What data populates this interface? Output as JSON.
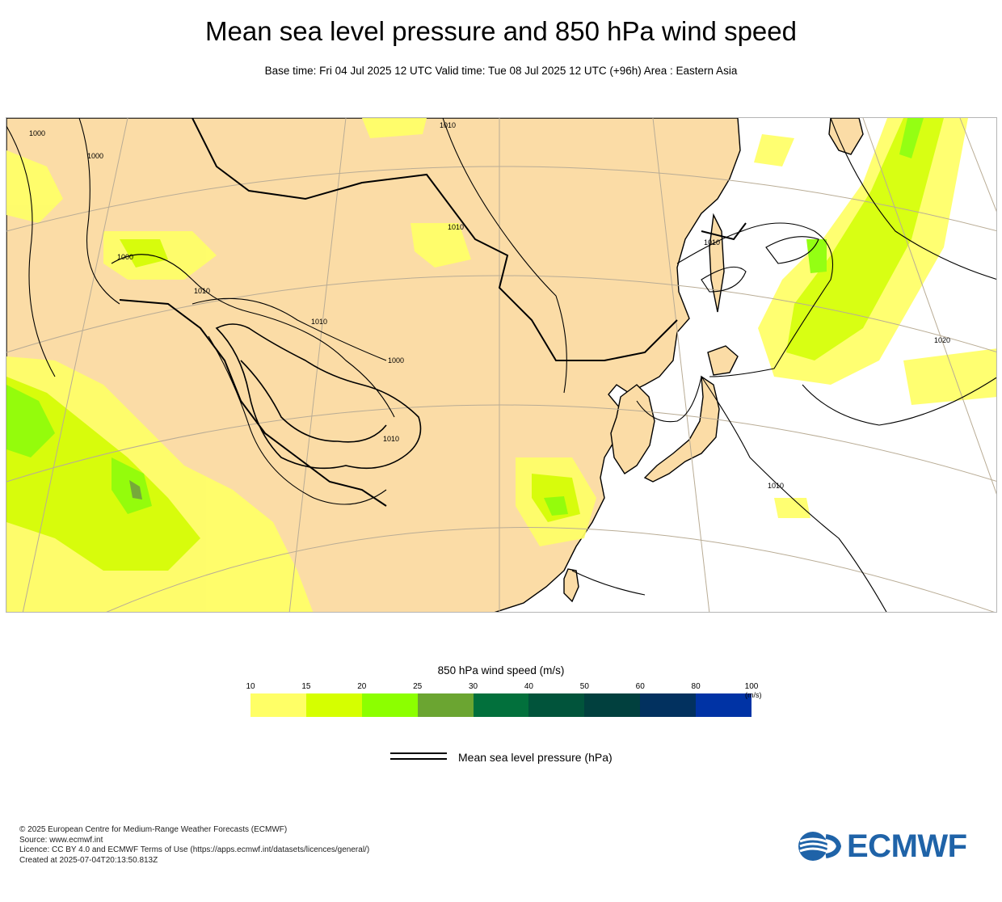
{
  "header": {
    "title": "Mean sea level pressure and 850 hPa wind speed",
    "subtitle": "Base time: Fri 04 Jul 2025 12 UTC Valid time: Tue 08 Jul 2025 12 UTC (+96h) Area : Eastern Asia"
  },
  "map": {
    "area": "Eastern Asia",
    "land_color": "#fbdca6",
    "sea_color": "#ffffff",
    "isobar_labels": [
      "1000",
      "1000",
      "1000",
      "1010",
      "1010",
      "1010",
      "1000",
      "1010",
      "1010",
      "1010",
      "1010",
      "1020"
    ]
  },
  "colorbar": {
    "title": "850 hPa wind speed (m/s)",
    "ticks": [
      "10",
      "15",
      "20",
      "25",
      "30",
      "40",
      "50",
      "60",
      "80",
      "100"
    ],
    "unit": "(m/s)",
    "colors": [
      "#ffff66",
      "#d5ff00",
      "#8cff00",
      "#6ba531",
      "#02703c",
      "#01543b",
      "#01403e",
      "#02315f",
      "#0033a5"
    ]
  },
  "legend": {
    "label": "Mean sea level pressure (hPa)"
  },
  "footer": {
    "line1": "© 2025 European Centre for Medium-Range Weather Forecasts (ECMWF)",
    "line2": "Source: www.ecmwf.int",
    "line3": "Licence: CC BY 4.0 and ECMWF Terms of Use (https://apps.ecmwf.int/datasets/licences/general/)",
    "line4": "Created at 2025-07-04T20:13:50.813Z"
  },
  "logo": {
    "text": "ECMWF",
    "color": "#1f63a8"
  }
}
